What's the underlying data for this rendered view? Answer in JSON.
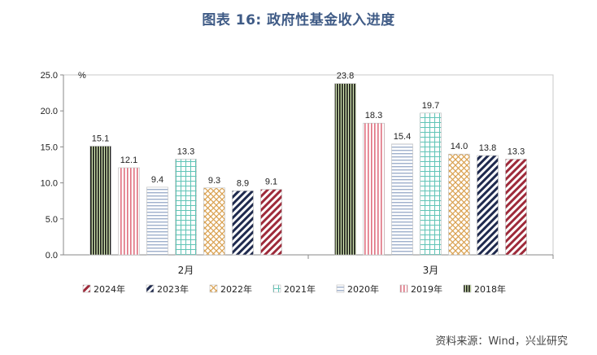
{
  "header": {
    "title": "图表 16: 政府性基金收入进度"
  },
  "footer": {
    "source": "资料来源：Wind，兴业研究"
  },
  "colors": {
    "2024年": "#9e2a3a",
    "2023年": "#1f2a4e",
    "2022年": "#d9a04e",
    "2021年": "#5fc4b6",
    "2020年": "#9fb0cc",
    "2019年": "#e07080",
    "2018年": "#2f4a2a"
  },
  "chart_data": {
    "type": "bar",
    "categories": [
      "2月",
      "3月"
    ],
    "series": [
      {
        "name": "2024年",
        "values": [
          9.1,
          13.3
        ]
      },
      {
        "name": "2023年",
        "values": [
          8.9,
          13.8
        ]
      },
      {
        "name": "2022年",
        "values": [
          9.3,
          14.0
        ]
      },
      {
        "name": "2021年",
        "values": [
          13.3,
          19.7
        ]
      },
      {
        "name": "2020年",
        "values": [
          9.4,
          15.4
        ]
      },
      {
        "name": "2019年",
        "values": [
          12.1,
          18.3
        ]
      },
      {
        "name": "2018年",
        "values": [
          15.1,
          23.8
        ]
      }
    ],
    "bar_order": [
      "2018年",
      "2019年",
      "2020年",
      "2021年",
      "2022年",
      "2023年",
      "2024年"
    ],
    "ylim": [
      0,
      25
    ],
    "yticks": [
      "0.0",
      "5.0",
      "10.0",
      "15.0",
      "20.0",
      "25.0"
    ],
    "ylabel": "%",
    "legend_position": "bottom",
    "grid": false
  }
}
